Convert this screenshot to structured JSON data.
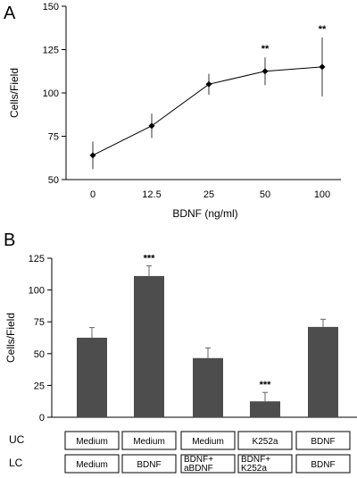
{
  "chart_data": [
    {
      "panel": "A",
      "type": "line",
      "x_categories": [
        "0",
        "12.5",
        "25",
        "50",
        "100"
      ],
      "values": [
        64,
        81,
        105,
        112.5,
        115
      ],
      "error": [
        8,
        7,
        6,
        8,
        17
      ],
      "significance": [
        "",
        "",
        "",
        "**",
        "**"
      ],
      "xlabel": "BDNF (ng/ml)",
      "ylabel": "Cells/Field",
      "ylim": [
        50,
        150
      ],
      "yticks": [
        "50",
        "75",
        "100",
        "125",
        "150"
      ],
      "grid": false,
      "legend": "none",
      "marker": "diamond",
      "color": "#000000"
    },
    {
      "panel": "B",
      "type": "bar",
      "categories": [
        "1",
        "2",
        "3",
        "4",
        "5"
      ],
      "values": [
        62.5,
        111,
        46.5,
        12.5,
        71
      ],
      "error": [
        8,
        8,
        8,
        7,
        6
      ],
      "significance": [
        "",
        "***",
        "",
        "***",
        ""
      ],
      "ylabel": "Cells/Field",
      "ylim": [
        0,
        125
      ],
      "yticks": [
        "0",
        "25",
        "50",
        "75",
        "100",
        "125"
      ],
      "grid": false,
      "legend": "none",
      "bar_color": "#4d4d4d",
      "uc_label": "UC",
      "lc_label": "LC",
      "uc": [
        "Medium",
        "Medium",
        "Medium",
        "K252a",
        "BDNF"
      ],
      "lc": [
        "Medium",
        "BDNF",
        "BDNF+ aBDNF",
        "BDNF+ K252a",
        "BDNF"
      ]
    }
  ]
}
